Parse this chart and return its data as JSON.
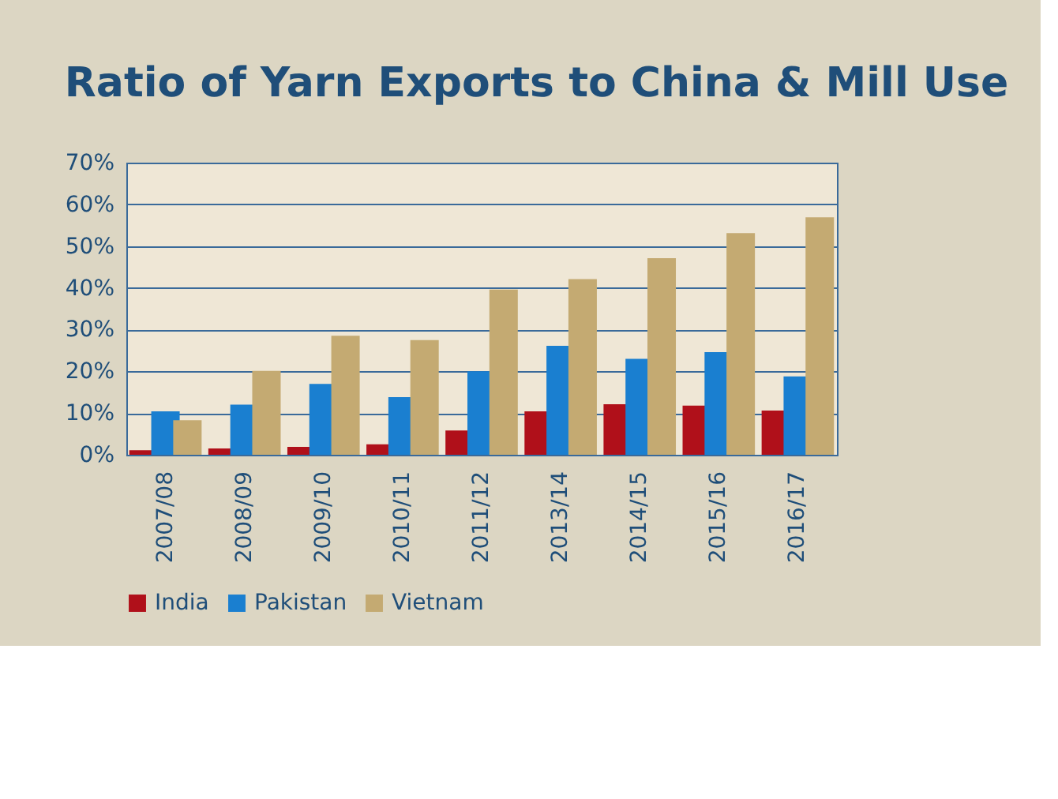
{
  "chart_data": {
    "type": "bar",
    "title": "Ratio of Yarn Exports to China & Mill Use",
    "categories": [
      "2007/08",
      "2008/09",
      "2009/10",
      "2010/11",
      "2011/12",
      "2013/14",
      "2014/15",
      "2015/16",
      "2016/17"
    ],
    "series": [
      {
        "name": "India",
        "color": "#b0101a",
        "values": [
          1.1,
          1.5,
          1.9,
          2.5,
          5.8,
          10.4,
          12.1,
          11.8,
          10.6
        ]
      },
      {
        "name": "Pakistan",
        "color": "#1a7fd0",
        "values": [
          10.4,
          12.0,
          17.0,
          13.8,
          20.0,
          26.1,
          23.0,
          24.6,
          18.8
        ]
      },
      {
        "name": "Vietnam",
        "color": "#c4aa72",
        "values": [
          8.3,
          20.1,
          28.5,
          27.5,
          39.6,
          42.1,
          47.1,
          53.1,
          56.9
        ]
      }
    ],
    "ylim": [
      0,
      70
    ],
    "yticks": [
      {
        "value": 0,
        "label": "0%"
      },
      {
        "value": 10,
        "label": "10%"
      },
      {
        "value": 20,
        "label": "20%"
      },
      {
        "value": 30,
        "label": "30%"
      },
      {
        "value": 40,
        "label": "40%"
      },
      {
        "value": 50,
        "label": "50%"
      },
      {
        "value": 60,
        "label": "60%"
      },
      {
        "value": 70,
        "label": "70%"
      }
    ],
    "grid": "y",
    "legend": "bottom"
  }
}
